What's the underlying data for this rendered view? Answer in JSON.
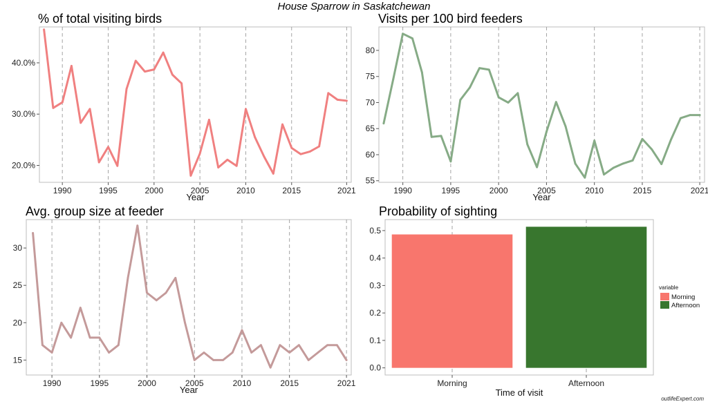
{
  "figure": {
    "title": "House Sparrow in Saskatchewan",
    "credit": "outlifeExpert.com"
  },
  "chart_data": [
    {
      "id": "pct",
      "type": "line",
      "title": "% of total visiting birds",
      "xlabel": "Year",
      "ylabel": "",
      "color": "#f08080",
      "xlim": [
        1987.5,
        2021.5
      ],
      "ylim": [
        16.7,
        47.0
      ],
      "xticks": [
        1990,
        1995,
        2000,
        2005,
        2010,
        2015,
        2021
      ],
      "yticks": [
        20,
        30,
        40
      ],
      "ytick_labels": [
        "20.0%",
        "30.0%",
        "40.0%"
      ],
      "grid": "dashed vertical",
      "x": [
        1988,
        1989,
        1990,
        1991,
        1992,
        1993,
        1994,
        1995,
        1996,
        1997,
        1998,
        1999,
        2000,
        2001,
        2002,
        2003,
        2004,
        2005,
        2006,
        2007,
        2008,
        2009,
        2010,
        2011,
        2012,
        2013,
        2014,
        2015,
        2016,
        2017,
        2018,
        2019,
        2020,
        2021
      ],
      "y": [
        46.5,
        31.2,
        32.3,
        39.4,
        28.3,
        31.0,
        20.6,
        23.6,
        19.9,
        34.9,
        40.4,
        38.3,
        38.7,
        42.0,
        37.7,
        36.0,
        18.0,
        22.3,
        28.9,
        19.6,
        21.1,
        19.9,
        31.0,
        25.5,
        21.7,
        18.4,
        28.0,
        23.4,
        22.2,
        22.7,
        23.7,
        34.1,
        32.8,
        32.6
      ]
    },
    {
      "id": "visits",
      "type": "line",
      "title": "Visits per 100 bird feeders",
      "xlabel": "Year",
      "ylabel": "",
      "color": "#86ab86",
      "xlim": [
        1987.5,
        2021.5
      ],
      "ylim": [
        54.7,
        84.5
      ],
      "xticks": [
        1990,
        1995,
        2000,
        2005,
        2010,
        2015,
        2021
      ],
      "yticks": [
        55,
        60,
        65,
        70,
        75,
        80
      ],
      "ytick_labels": [
        "55",
        "60",
        "65",
        "70",
        "75",
        "80"
      ],
      "grid": "dashed vertical",
      "x": [
        1988,
        1989,
        1990,
        1991,
        1992,
        1993,
        1994,
        1995,
        1996,
        1997,
        1998,
        1999,
        2000,
        2001,
        2002,
        2003,
        2004,
        2005,
        2006,
        2007,
        2008,
        2009,
        2010,
        2011,
        2012,
        2013,
        2014,
        2015,
        2016,
        2017,
        2018,
        2019,
        2020,
        2021
      ],
      "y": [
        66.0,
        74.5,
        83.2,
        82.3,
        75.8,
        63.4,
        63.6,
        58.7,
        70.5,
        72.9,
        76.6,
        76.3,
        71.0,
        70.0,
        71.8,
        62.0,
        57.6,
        64.4,
        70.1,
        65.4,
        58.3,
        55.6,
        62.7,
        56.2,
        57.5,
        58.3,
        58.9,
        63.0,
        61.0,
        58.2,
        62.9,
        67.0,
        67.6,
        67.6
      ]
    },
    {
      "id": "group",
      "type": "line",
      "title": "Avg. group size at feeder",
      "xlabel": "Year",
      "ylabel": "",
      "color": "#c49a9a",
      "xlim": [
        1987.3,
        2021.5
      ],
      "ylim": [
        13.0,
        33.8
      ],
      "xticks": [
        1990,
        1995,
        2000,
        2005,
        2010,
        2015,
        2021
      ],
      "yticks": [
        15,
        20,
        25,
        30
      ],
      "ytick_labels": [
        "15",
        "20",
        "25",
        "30"
      ],
      "grid": "dashed vertical",
      "x": [
        1988,
        1989,
        1990,
        1991,
        1992,
        1993,
        1994,
        1995,
        1996,
        1997,
        1998,
        1999,
        2000,
        2001,
        2002,
        2003,
        2004,
        2005,
        2006,
        2007,
        2008,
        2009,
        2010,
        2011,
        2012,
        2013,
        2014,
        2015,
        2016,
        2017,
        2018,
        2019,
        2020,
        2021
      ],
      "y": [
        32,
        17,
        16,
        20,
        18,
        22,
        18,
        18,
        16,
        17,
        26,
        33,
        24,
        23,
        24,
        26,
        20,
        15,
        16,
        15,
        15,
        16,
        19,
        16,
        17,
        14,
        17,
        16,
        17,
        15,
        16,
        17,
        17,
        15
      ]
    },
    {
      "id": "prob",
      "type": "bar",
      "title": "Probability of sighting",
      "xlabel": "Time of visit",
      "ylabel": "",
      "categories": [
        "Morning",
        "Afternoon"
      ],
      "values": [
        0.486,
        0.514
      ],
      "colors": [
        "#f8766d",
        "#38762e"
      ],
      "ylim": [
        -0.026,
        0.54
      ],
      "yticks": [
        0.0,
        0.1,
        0.2,
        0.3,
        0.4,
        0.5
      ],
      "ytick_labels": [
        "0.0",
        "0.1",
        "0.2",
        "0.3",
        "0.4",
        "0.5"
      ],
      "grid": "dashed vertical",
      "legend": {
        "title": "variable",
        "position": "right",
        "entries": [
          "Morning",
          "Afternoon"
        ]
      }
    }
  ]
}
